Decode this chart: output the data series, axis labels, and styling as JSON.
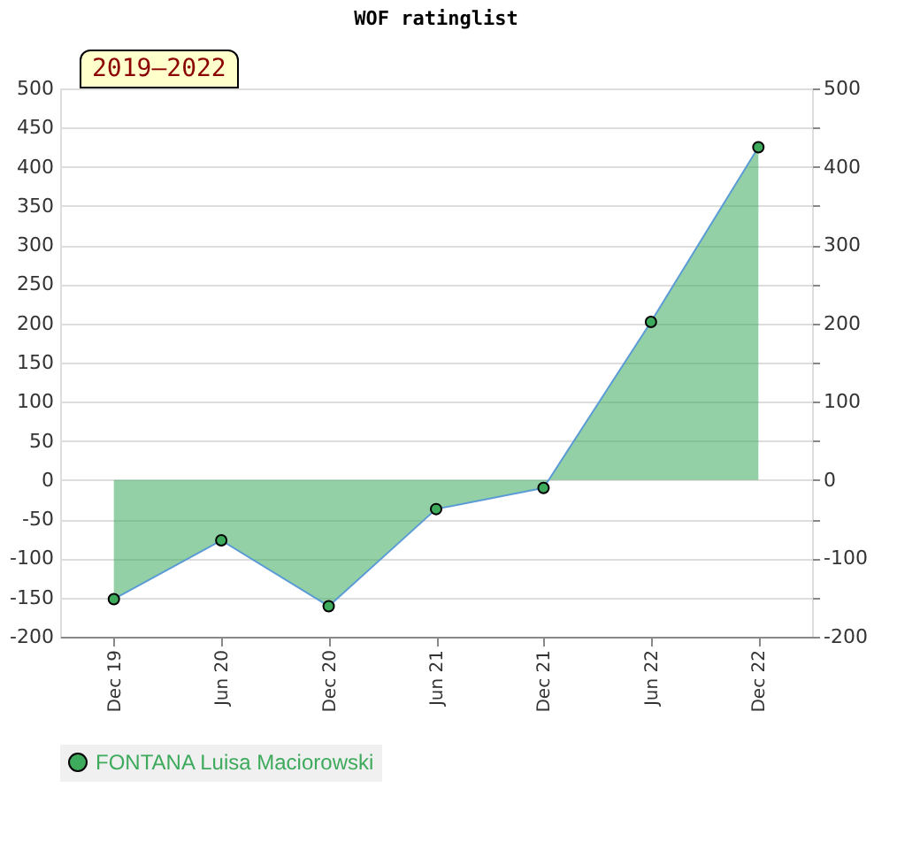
{
  "chart_data": {
    "type": "area",
    "title": "WOF ratinglist",
    "annotations": [
      "2019–2022"
    ],
    "categories": [
      "Dec 19",
      "Jun 20",
      "Dec 20",
      "Jun 21",
      "Dec 21",
      "Jun 22",
      "Dec 22"
    ],
    "series": [
      {
        "name": "FONTANA Luisa Maciorowski",
        "color": "#3daa5c",
        "values": [
          -152,
          -77,
          -161,
          -37,
          -10,
          202,
          425
        ]
      }
    ],
    "ylim": [
      -200,
      500
    ],
    "yticks": [
      -200,
      -150,
      -100,
      -50,
      0,
      50,
      100,
      150,
      200,
      250,
      300,
      350,
      400,
      450,
      500
    ],
    "y2lim": [
      -200,
      500
    ],
    "y2ticks": [
      -200,
      {
        "value": -150,
        "label": null
      },
      -100,
      {
        "value": -50,
        "label": null
      },
      0,
      {
        "value": 50,
        "label": null
      },
      100,
      {
        "value": 150,
        "label": null
      },
      200,
      {
        "value": 250,
        "label": null
      },
      300,
      {
        "value": 350,
        "label": null
      },
      400,
      {
        "value": 450,
        "label": null
      },
      500
    ],
    "grid": "y",
    "legend": "bottom",
    "marker": "circle",
    "line_style": "solid"
  }
}
